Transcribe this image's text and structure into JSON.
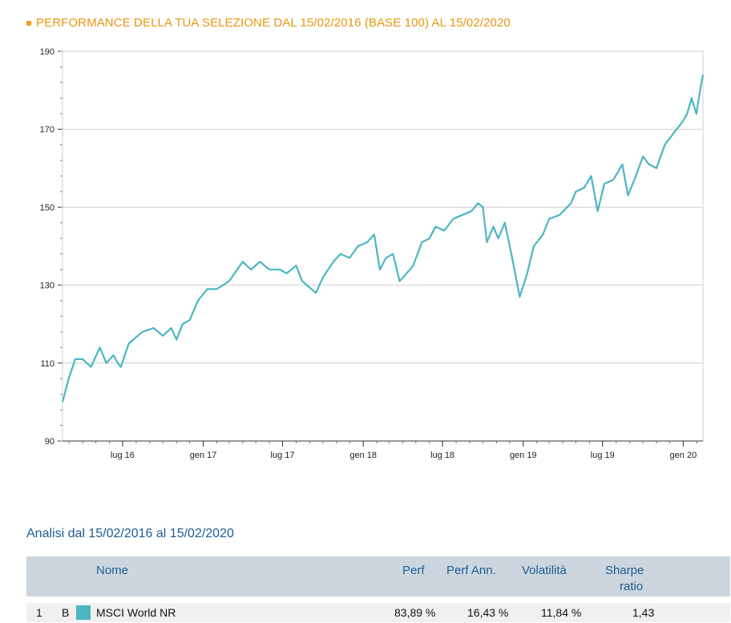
{
  "header": {
    "title": "PERFORMANCE DELLA TUA SELEZIONE DAL 15/02/2016 (BASE 100) AL 15/02/2020"
  },
  "chart_data": {
    "type": "line",
    "title": "PERFORMANCE DELLA TUA SELEZIONE DAL 15/02/2016 (BASE 100) AL 15/02/2020",
    "ylim": [
      90,
      190
    ],
    "yticks": [
      190,
      170,
      150,
      130,
      110,
      90
    ],
    "xlabels": [
      "lug 16",
      "gen 17",
      "lug 17",
      "gen 18",
      "lug 18",
      "gen 19",
      "lug 19",
      "gen 20"
    ],
    "xlabel_dates": [
      "2016-07-01",
      "2017-01-01",
      "2017-07-01",
      "2018-01-01",
      "2018-07-01",
      "2019-01-01",
      "2019-07-01",
      "2020-01-01"
    ],
    "xrange": [
      "2016-02-15",
      "2020-02-15"
    ],
    "grid": true,
    "series_color": "#4cb6c2",
    "series": [
      {
        "name": "MSCI World NR",
        "points": [
          [
            "2016-02-15",
            100
          ],
          [
            "2016-02-29",
            106
          ],
          [
            "2016-03-15",
            111
          ],
          [
            "2016-04-01",
            111
          ],
          [
            "2016-04-20",
            109
          ],
          [
            "2016-05-10",
            114
          ],
          [
            "2016-05-25",
            110
          ],
          [
            "2016-06-10",
            112
          ],
          [
            "2016-06-20",
            110
          ],
          [
            "2016-06-27",
            109
          ],
          [
            "2016-07-15",
            115
          ],
          [
            "2016-08-15",
            118
          ],
          [
            "2016-09-10",
            119
          ],
          [
            "2016-10-01",
            117
          ],
          [
            "2016-10-20",
            119
          ],
          [
            "2016-11-01",
            116
          ],
          [
            "2016-11-15",
            120
          ],
          [
            "2016-12-01",
            121
          ],
          [
            "2016-12-20",
            126
          ],
          [
            "2017-01-10",
            129
          ],
          [
            "2017-02-01",
            129
          ],
          [
            "2017-03-01",
            131
          ],
          [
            "2017-04-01",
            136
          ],
          [
            "2017-04-20",
            134
          ],
          [
            "2017-05-10",
            136
          ],
          [
            "2017-06-01",
            134
          ],
          [
            "2017-06-25",
            134
          ],
          [
            "2017-07-10",
            133
          ],
          [
            "2017-08-01",
            135
          ],
          [
            "2017-08-15",
            131
          ],
          [
            "2017-09-15",
            128
          ],
          [
            "2017-10-01",
            132
          ],
          [
            "2017-10-25",
            136
          ],
          [
            "2017-11-10",
            138
          ],
          [
            "2017-12-01",
            137
          ],
          [
            "2017-12-20",
            140
          ],
          [
            "2018-01-10",
            141
          ],
          [
            "2018-01-26",
            143
          ],
          [
            "2018-02-08",
            134
          ],
          [
            "2018-02-22",
            137
          ],
          [
            "2018-03-10",
            138
          ],
          [
            "2018-03-25",
            131
          ],
          [
            "2018-04-10",
            133
          ],
          [
            "2018-04-25",
            135
          ],
          [
            "2018-05-15",
            141
          ],
          [
            "2018-06-01",
            142
          ],
          [
            "2018-06-15",
            145
          ],
          [
            "2018-07-05",
            144
          ],
          [
            "2018-07-25",
            147
          ],
          [
            "2018-08-15",
            148
          ],
          [
            "2018-09-05",
            149
          ],
          [
            "2018-09-20",
            151
          ],
          [
            "2018-10-01",
            150
          ],
          [
            "2018-10-10",
            141
          ],
          [
            "2018-10-25",
            145
          ],
          [
            "2018-11-05",
            142
          ],
          [
            "2018-11-20",
            146
          ],
          [
            "2018-12-05",
            138
          ],
          [
            "2018-12-24",
            127
          ],
          [
            "2019-01-10",
            133
          ],
          [
            "2019-01-25",
            140
          ],
          [
            "2019-02-15",
            143
          ],
          [
            "2019-03-01",
            147
          ],
          [
            "2019-03-25",
            148
          ],
          [
            "2019-04-20",
            151
          ],
          [
            "2019-05-01",
            154
          ],
          [
            "2019-05-20",
            155
          ],
          [
            "2019-06-05",
            158
          ],
          [
            "2019-06-20",
            149
          ],
          [
            "2019-07-05",
            156
          ],
          [
            "2019-07-25",
            157
          ],
          [
            "2019-08-05",
            159
          ],
          [
            "2019-08-15",
            161
          ],
          [
            "2019-08-28",
            153
          ],
          [
            "2019-09-15",
            158
          ],
          [
            "2019-10-01",
            163
          ],
          [
            "2019-10-15",
            161
          ],
          [
            "2019-11-01",
            160
          ],
          [
            "2019-11-20",
            166
          ],
          [
            "2019-12-10",
            169
          ],
          [
            "2019-12-31",
            172
          ],
          [
            "2020-01-10",
            174
          ],
          [
            "2020-01-20",
            178
          ],
          [
            "2020-01-31",
            174
          ],
          [
            "2020-02-10",
            181
          ],
          [
            "2020-02-15",
            184
          ]
        ]
      }
    ]
  },
  "analysis": {
    "title": "Analisi dal 15/02/2016 al 15/02/2020"
  },
  "table": {
    "headers": {
      "nome": "Nome",
      "perf": "Perf",
      "perf_ann": "Perf Ann.",
      "volatilita": "Volatilità",
      "sharpe_line1": "Sharpe",
      "sharpe_line2": "ratio"
    },
    "rows": [
      {
        "index": "1",
        "letter": "B",
        "name": "MSCI World NR",
        "perf": "83,89 %",
        "perf_ann": "16,43 %",
        "volatilita": "11,84 %",
        "sharpe": "1,43"
      }
    ]
  }
}
